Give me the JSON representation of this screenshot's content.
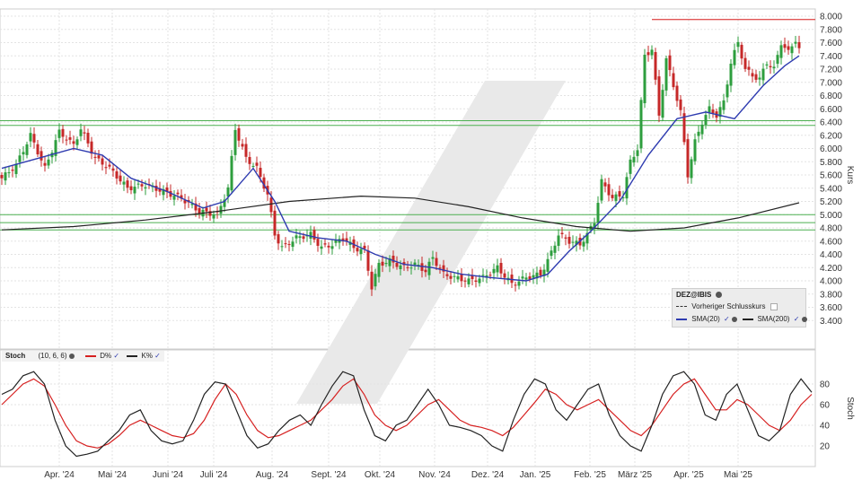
{
  "chart_data": [
    {
      "type": "candlestick",
      "symbol": "DEZ@IBIS",
      "ylabel": "Kurs",
      "ylim": [
        3.2,
        8.0
      ],
      "yticks": [
        "8.000",
        "7.800",
        "7.600",
        "7.400",
        "7.200",
        "7.000",
        "6.800",
        "6.600",
        "6.400",
        "6.200",
        "6.000",
        "5.800",
        "5.600",
        "5.400",
        "5.200",
        "5.000",
        "4.800",
        "4.600",
        "4.400",
        "4.200",
        "4.000",
        "3.800",
        "3.600",
        "3.400"
      ],
      "x_months": [
        "Apr. '24",
        "Mai '24",
        "Juni '24",
        "Juli '24",
        "Aug. '24",
        "Sept. '24",
        "Okt. '24",
        "Nov. '24",
        "Dez. '24",
        "Jan. '25",
        "Feb. '25",
        "März '25",
        "Apr. '25",
        "Mai '25"
      ],
      "horizontal_levels": {
        "resistance_red": 7.95,
        "green": [
          6.42,
          6.35,
          5.0,
          4.88,
          4.77
        ]
      },
      "legend": {
        "title": "DEZ@IBIS",
        "items": [
          "Vorheriger Schlusskurs",
          "SMA(20)",
          "SMA(200)"
        ]
      },
      "series": {
        "close_path": [
          [
            0,
            5.55
          ],
          [
            4,
            5.75
          ],
          [
            8,
            6.2
          ],
          [
            12,
            5.7
          ],
          [
            16,
            6.25
          ],
          [
            20,
            6.05
          ],
          [
            22,
            6.3
          ],
          [
            26,
            5.85
          ],
          [
            30,
            5.7
          ],
          [
            35,
            5.4
          ],
          [
            40,
            5.45
          ],
          [
            45,
            5.35
          ],
          [
            50,
            5.25
          ],
          [
            55,
            5.05
          ],
          [
            60,
            5.0
          ],
          [
            63,
            5.4
          ],
          [
            65,
            6.3
          ],
          [
            68,
            5.85
          ],
          [
            71,
            5.7
          ],
          [
            74,
            5.3
          ],
          [
            76,
            4.7
          ],
          [
            78,
            4.5
          ],
          [
            82,
            4.65
          ],
          [
            86,
            4.7
          ],
          [
            89,
            4.5
          ],
          [
            92,
            4.55
          ],
          [
            95,
            4.65
          ],
          [
            98,
            4.5
          ],
          [
            101,
            4.45
          ],
          [
            103,
            3.9
          ],
          [
            105,
            4.25
          ],
          [
            108,
            4.3
          ],
          [
            112,
            4.2
          ],
          [
            115,
            4.25
          ],
          [
            118,
            4.15
          ],
          [
            120,
            4.35
          ],
          [
            123,
            4.1
          ],
          [
            126,
            4.05
          ],
          [
            130,
            4.0
          ],
          [
            134,
            4.05
          ],
          [
            138,
            4.2
          ],
          [
            142,
            3.95
          ],
          [
            146,
            4.05
          ],
          [
            150,
            4.1
          ],
          [
            152,
            4.3
          ],
          [
            155,
            4.7
          ],
          [
            158,
            4.6
          ],
          [
            161,
            4.55
          ],
          [
            163,
            4.7
          ],
          [
            165,
            4.9
          ],
          [
            167,
            5.5
          ],
          [
            170,
            5.25
          ],
          [
            173,
            5.3
          ],
          [
            175,
            5.8
          ],
          [
            177,
            6.0
          ],
          [
            179,
            7.4
          ],
          [
            181,
            7.5
          ],
          [
            183,
            6.5
          ],
          [
            185,
            7.35
          ],
          [
            187,
            6.95
          ],
          [
            189,
            6.55
          ],
          [
            191,
            5.6
          ],
          [
            193,
            6.1
          ],
          [
            195,
            6.4
          ],
          [
            197,
            6.6
          ],
          [
            199,
            6.5
          ],
          [
            201,
            6.7
          ],
          [
            203,
            7.3
          ],
          [
            205,
            7.6
          ],
          [
            207,
            7.2
          ],
          [
            209,
            7.1
          ],
          [
            211,
            7.05
          ],
          [
            213,
            7.3
          ],
          [
            215,
            7.2
          ],
          [
            217,
            7.6
          ],
          [
            219,
            7.45
          ],
          [
            221,
            7.65
          ],
          [
            222,
            7.5
          ]
        ],
        "sma20": [
          [
            0,
            5.7
          ],
          [
            10,
            5.85
          ],
          [
            20,
            6.0
          ],
          [
            28,
            5.9
          ],
          [
            36,
            5.55
          ],
          [
            46,
            5.35
          ],
          [
            56,
            5.1
          ],
          [
            62,
            5.2
          ],
          [
            70,
            5.7
          ],
          [
            76,
            5.2
          ],
          [
            80,
            4.75
          ],
          [
            88,
            4.65
          ],
          [
            96,
            4.6
          ],
          [
            104,
            4.4
          ],
          [
            112,
            4.25
          ],
          [
            120,
            4.2
          ],
          [
            128,
            4.1
          ],
          [
            136,
            4.05
          ],
          [
            146,
            4.0
          ],
          [
            152,
            4.1
          ],
          [
            158,
            4.45
          ],
          [
            164,
            4.75
          ],
          [
            172,
            5.2
          ],
          [
            180,
            5.9
          ],
          [
            188,
            6.45
          ],
          [
            196,
            6.55
          ],
          [
            204,
            6.45
          ],
          [
            212,
            6.95
          ],
          [
            218,
            7.25
          ],
          [
            222,
            7.4
          ]
        ],
        "sma200": [
          [
            0,
            4.77
          ],
          [
            20,
            4.82
          ],
          [
            40,
            4.92
          ],
          [
            60,
            5.05
          ],
          [
            80,
            5.2
          ],
          [
            100,
            5.28
          ],
          [
            115,
            5.25
          ],
          [
            130,
            5.12
          ],
          [
            145,
            4.95
          ],
          [
            160,
            4.82
          ],
          [
            175,
            4.75
          ],
          [
            190,
            4.8
          ],
          [
            205,
            4.95
          ],
          [
            222,
            5.18
          ]
        ]
      }
    },
    {
      "type": "line",
      "title": "Stoch",
      "params": "(10, 6, 6)",
      "ylabel": "Stoch",
      "ylim": [
        0,
        100
      ],
      "yticks": [
        "20",
        "40",
        "60",
        "80"
      ],
      "series": [
        {
          "name": "D%",
          "color": "#d62020",
          "values": [
            60,
            70,
            80,
            85,
            78,
            60,
            40,
            25,
            20,
            18,
            22,
            30,
            40,
            45,
            40,
            35,
            30,
            28,
            32,
            45,
            65,
            80,
            70,
            50,
            35,
            28,
            30,
            35,
            40,
            45,
            55,
            65,
            78,
            85,
            70,
            50,
            40,
            35,
            40,
            50,
            60,
            65,
            55,
            45,
            40,
            38,
            35,
            30,
            38,
            50,
            62,
            75,
            70,
            60,
            55,
            60,
            65,
            55,
            45,
            35,
            30,
            40,
            55,
            70,
            80,
            85,
            70,
            55,
            55,
            65,
            60,
            50,
            40,
            35,
            45,
            60,
            70
          ]
        },
        {
          "name": "K%",
          "color": "#222222",
          "values": [
            70,
            75,
            88,
            92,
            80,
            45,
            20,
            10,
            12,
            15,
            25,
            35,
            50,
            55,
            35,
            25,
            22,
            25,
            45,
            70,
            82,
            80,
            55,
            30,
            18,
            22,
            35,
            45,
            50,
            40,
            60,
            78,
            92,
            88,
            55,
            30,
            25,
            40,
            45,
            60,
            75,
            60,
            40,
            38,
            35,
            30,
            20,
            15,
            45,
            70,
            85,
            80,
            55,
            45,
            60,
            75,
            80,
            50,
            30,
            20,
            15,
            40,
            70,
            88,
            92,
            80,
            50,
            45,
            70,
            80,
            55,
            30,
            25,
            35,
            70,
            85,
            72
          ]
        }
      ]
    }
  ]
}
